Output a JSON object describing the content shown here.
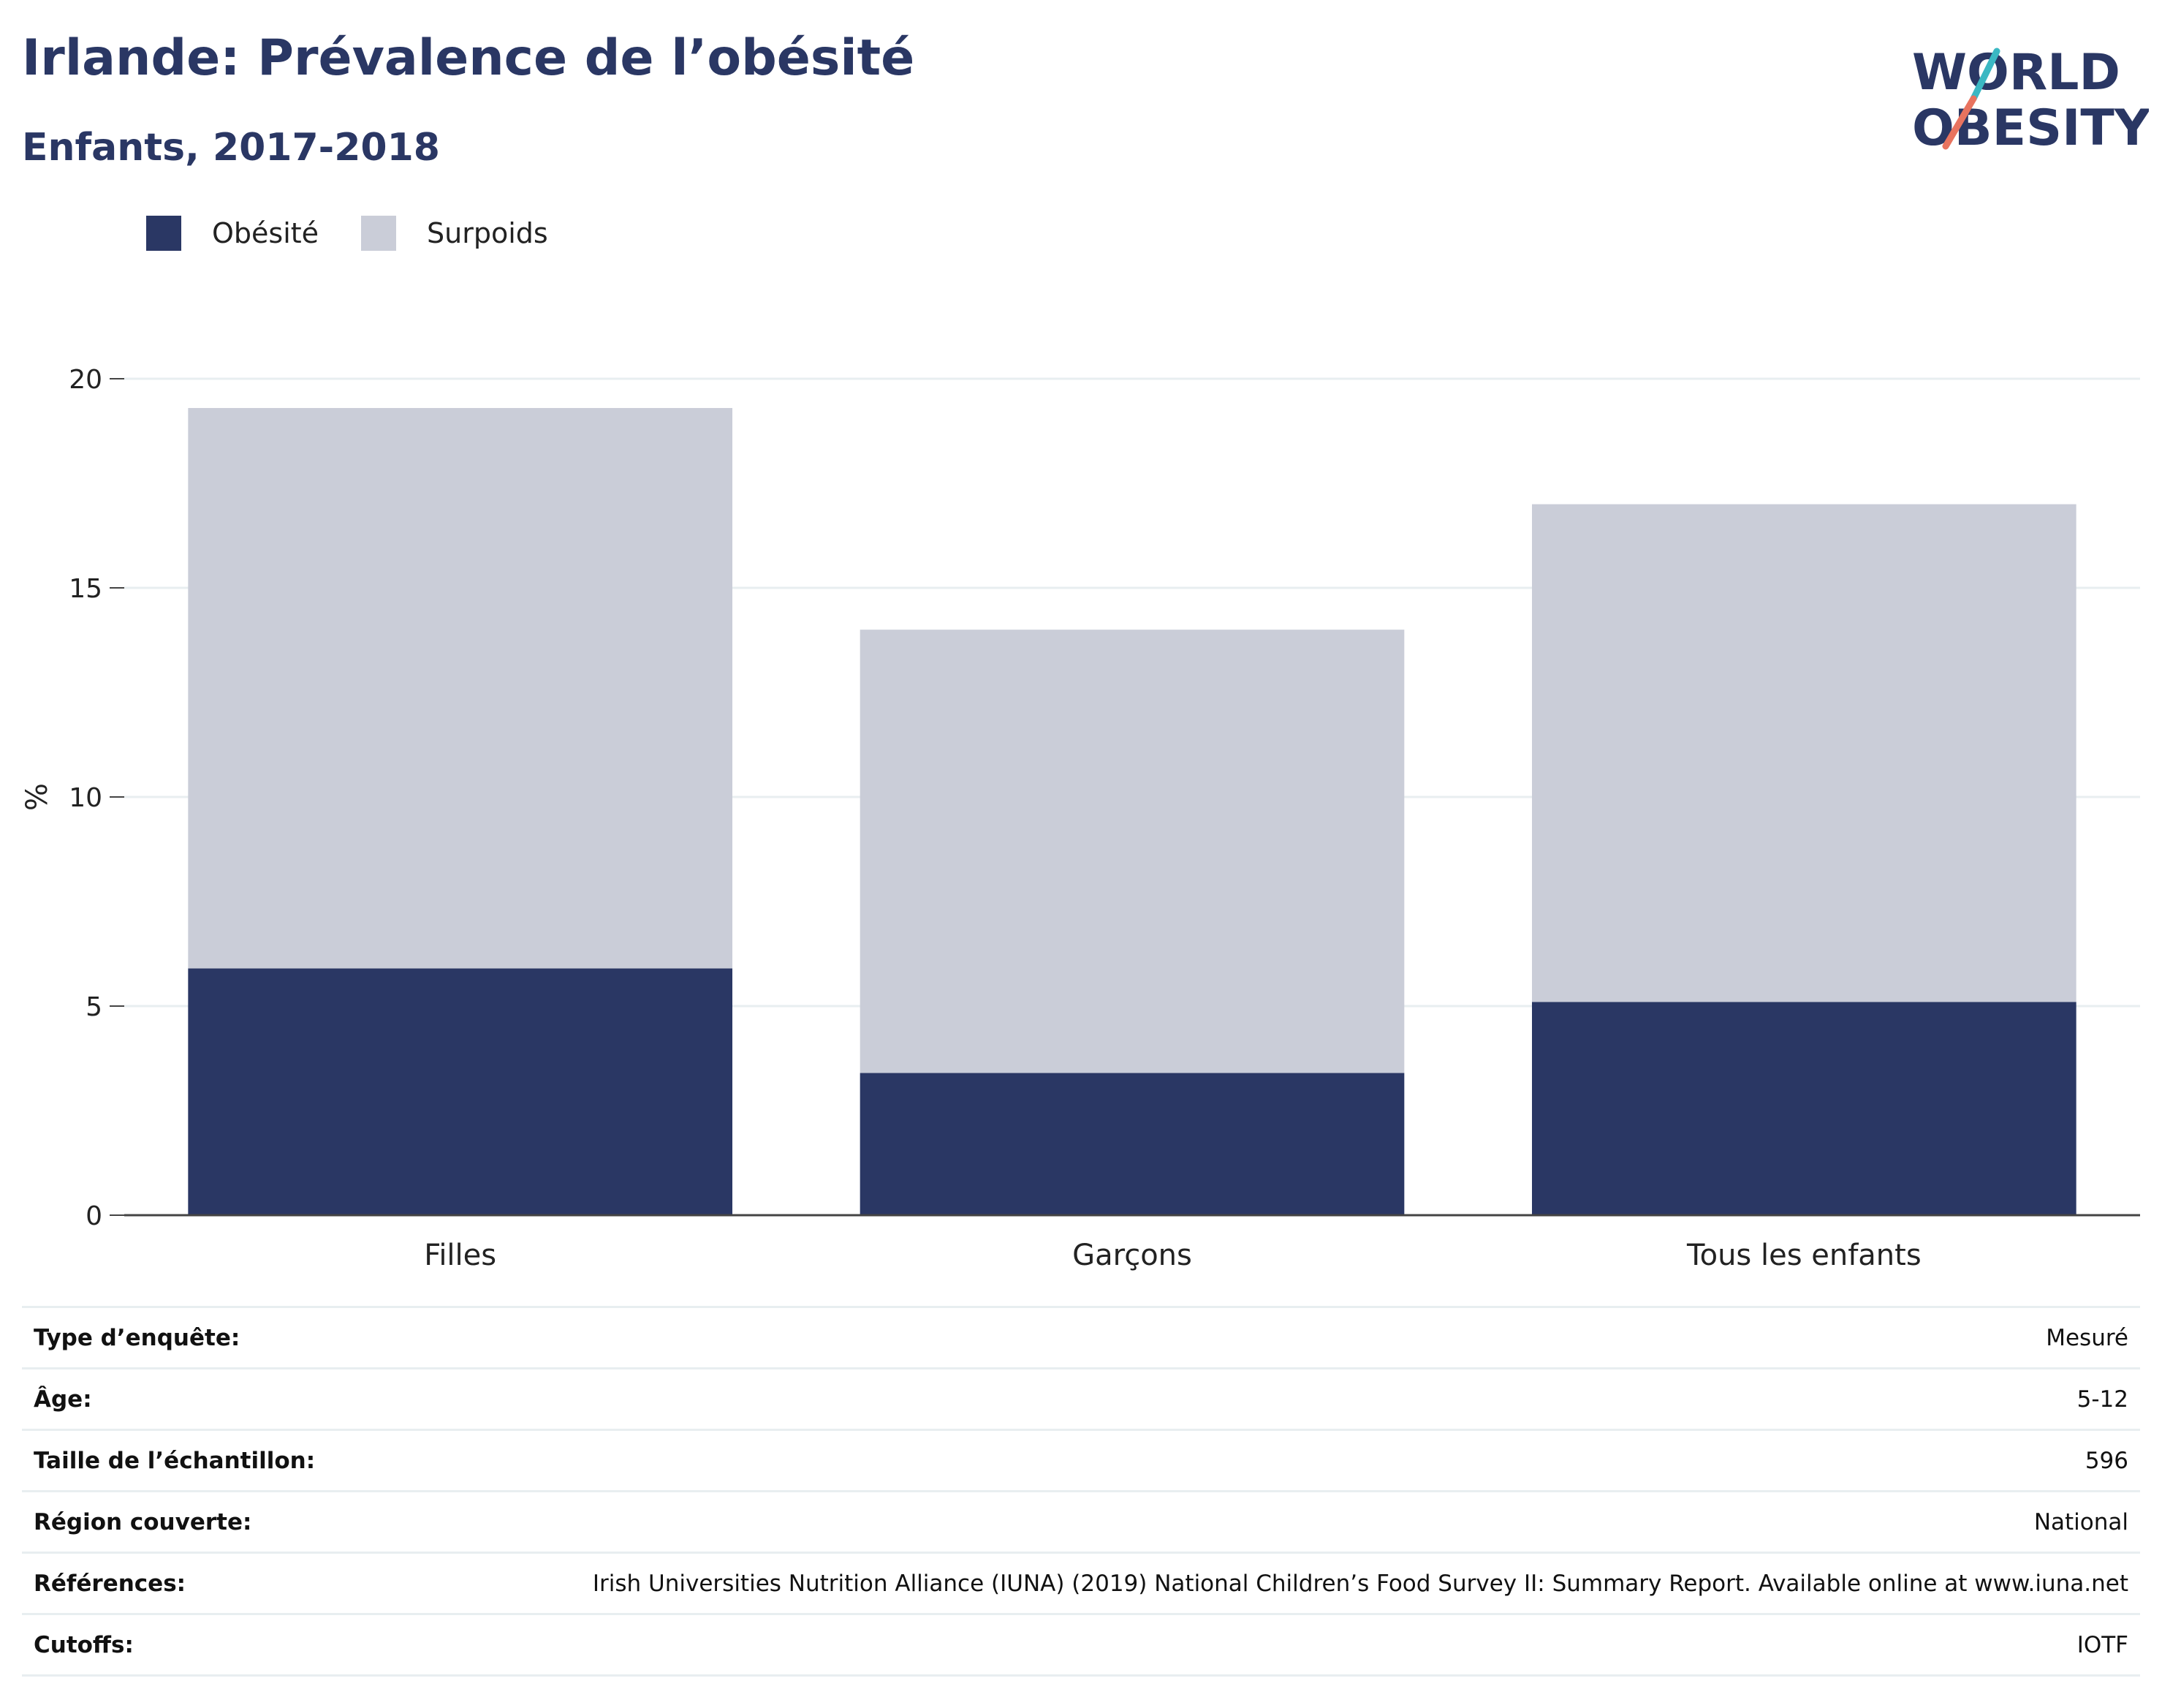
{
  "header": {
    "title": "Irlande: Prévalence de l’obésité",
    "subtitle": "Enfants, 2017-2018",
    "logo_line1": "WORLD",
    "logo_line2": "OBESITY"
  },
  "colors": {
    "obesity": "#2a3764",
    "overweight": "#cacdd8",
    "title": "#2a3764",
    "logo_teal": "#3bb8c3",
    "logo_coral": "#e8735f"
  },
  "legend": [
    {
      "label": "Obésité",
      "color": "#2a3764"
    },
    {
      "label": "Surpoids",
      "color": "#cacdd8"
    }
  ],
  "chart_data": {
    "type": "bar",
    "stacked": true,
    "categories": [
      "Filles",
      "Garçons",
      "Tous les enfants"
    ],
    "series": [
      {
        "name": "Obésité",
        "values": [
          5.9,
          3.4,
          5.1
        ]
      },
      {
        "name": "Surpoids",
        "values": [
          13.4,
          10.6,
          11.9
        ]
      }
    ],
    "ylabel": "%",
    "ylim": [
      0,
      20
    ],
    "yticks": [
      0,
      5,
      10,
      15,
      20
    ],
    "grid": true,
    "legend_position": "top-left"
  },
  "table": [
    {
      "label": "Type d’enquête:",
      "value": "Mesuré"
    },
    {
      "label": "Âge:",
      "value": "5-12"
    },
    {
      "label": "Taille de l’échantillon:",
      "value": "596"
    },
    {
      "label": "Région couverte:",
      "value": "National"
    },
    {
      "label": "Références:",
      "value": "Irish Universities Nutrition Alliance (IUNA) (2019) National Children’s Food Survey II: Summary Report. Available online at www.iuna.net"
    },
    {
      "label": "Cutoffs:",
      "value": "IOTF"
    }
  ]
}
